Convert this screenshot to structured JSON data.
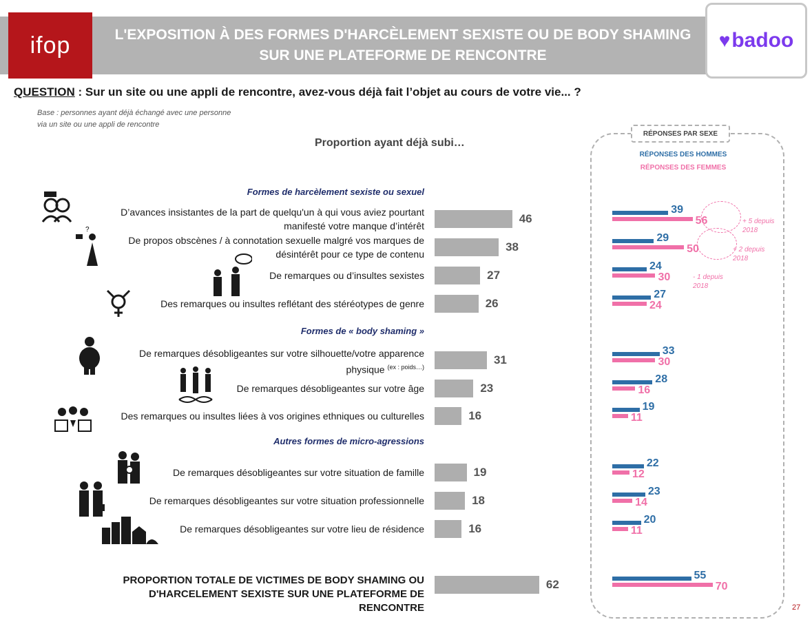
{
  "header": {
    "ifop_logo": "ifop",
    "title_line1": "L'EXPOSITION À DES FORMES D'HARCÈLEMENT SEXISTE OU DE BODY SHAMING",
    "title_line2": "SUR UNE PLATEFORME DE RENCONTRE",
    "badoo_logo": "badoo"
  },
  "question": {
    "label": "QUESTION",
    "text": " :  Sur un site ou une appli de rencontre, avez-vous déjà fait l’objet au cours de votre vie... ?"
  },
  "base": {
    "line1": "Base : personnes ayant déjà échangé avec une personne",
    "line2": "via un site ou une appli de rencontre"
  },
  "chart_title": "Proportion ayant déjà subi…",
  "sections": [
    "Formes de harcèlement sexiste ou sexuel",
    "Formes de « body shaming »",
    "Autres formes de micro-agressions"
  ],
  "panel": {
    "title": "RÉPONSES PAR SEXE",
    "legend_men": "RÉPONSES DES HOMMES",
    "legend_women": "RÉPONSES DES FEMMES"
  },
  "trends": [
    "+ 5 depuis 2018",
    "+ 2 depuis 2018",
    "- 1 depuis 2018"
  ],
  "colors": {
    "total_bar": "#aeaeae",
    "men": "#2e6ea6",
    "women": "#f070a8",
    "brand_ifop": "#b5161b",
    "brand_badoo": "#7c3aed"
  },
  "chart_data": {
    "type": "bar",
    "orientation": "horizontal",
    "title": "Proportion ayant déjà subi…",
    "categories": [
      "D’avances insistantes de la part de quelqu'un à qui vous aviez pourtant manifesté votre manque d’intérêt",
      "De propos obscènes / à connotation sexuelle malgré vos marques de désintérêt pour ce type de contenu",
      "De remarques ou d’insultes sexistes",
      "Des remarques ou insultes reflétant des stéréotypes de genre",
      "De remarques désobligeantes sur votre silhouette/votre apparence physique (ex : poids…)",
      "De remarques désobligeantes sur votre âge",
      "Des remarques ou insultes liées à vos origines ethniques ou culturelles",
      "De remarques désobligeantes sur votre situation de famille",
      "De remarques désobligeantes sur votre situation professionnelle",
      "De remarques désobligeantes sur votre lieu de résidence",
      "PROPORTION TOTALE DE VICTIMES DE BODY SHAMING OU D'HARCELEMENT SEXISTE SUR UNE PLATEFORME DE RENCONTRE"
    ],
    "series": [
      {
        "values": [
          46,
          38,
          27,
          26,
          31,
          23,
          16,
          19,
          18,
          16,
          62
        ]
      },
      {
        "name": "RÉPONSES DES HOMMES",
        "values": [
          39,
          29,
          24,
          27,
          33,
          28,
          19,
          22,
          23,
          20,
          55
        ]
      },
      {
        "name": "RÉPONSES DES FEMMES",
        "values": [
          56,
          50,
          30,
          24,
          30,
          16,
          11,
          12,
          14,
          11,
          70
        ]
      }
    ],
    "xlim": [
      0,
      100
    ]
  },
  "rows_display": [
    {
      "line1": "D’avances insistantes de la part de quelqu'un à qui vous aviez pourtant",
      "line2": "manifesté votre manque d’intérêt",
      "sup": ""
    },
    {
      "line1": "De propos obscènes / à connotation sexuelle malgré vos marques de",
      "line2": "désintérêt pour ce type de contenu",
      "sup": ""
    },
    {
      "line1": "De remarques ou d’insultes sexistes",
      "line2": "",
      "sup": ""
    },
    {
      "line1": "Des remarques ou insultes reflétant des stéréotypes de genre",
      "line2": "",
      "sup": ""
    },
    {
      "line1": "De remarques désobligeantes sur votre silhouette/votre apparence",
      "line2": "physique",
      "sup": "(ex : poids…)"
    },
    {
      "line1": "De remarques désobligeantes sur votre âge",
      "line2": "",
      "sup": ""
    },
    {
      "line1": "Des remarques ou insultes liées à vos origines ethniques ou culturelles",
      "line2": "",
      "sup": ""
    },
    {
      "line1": "De remarques désobligeantes sur votre situation de famille",
      "line2": "",
      "sup": ""
    },
    {
      "line1": "De remarques désobligeantes sur votre situation professionnelle",
      "line2": "",
      "sup": ""
    },
    {
      "line1": "De remarques désobligeantes sur votre lieu de résidence",
      "line2": "",
      "sup": ""
    }
  ],
  "total_label_line1": "PROPORTION TOTALE DE VICTIMES DE BODY SHAMING OU",
  "total_label_line2": "D'HARCELEMENT SEXISTE SUR UNE PLATEFORME DE RENCONTRE",
  "page_number": "27",
  "icons": [
    "couple-icon",
    "phone-message-icon",
    "arguing-people-icon",
    "gender-symbol-icon",
    "silhouette-icon",
    "family-ages-dna-icon",
    "diverse-people-icon",
    "family-icon",
    "professionals-icon",
    "city-residence-icon"
  ]
}
